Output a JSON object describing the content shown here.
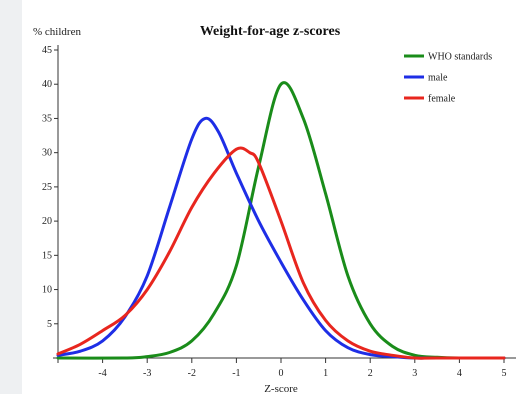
{
  "chart_data": {
    "type": "line",
    "title": "Weight-for-age z-scores",
    "ylabel": "% children",
    "xlabel": "Z-score",
    "xlim": [
      -5,
      5
    ],
    "ylim": [
      0,
      45
    ],
    "xticks": [
      -5,
      -4,
      -3,
      -2,
      -1,
      0,
      1,
      2,
      3,
      4,
      5
    ],
    "xtick_labels": [
      "",
      "-4",
      "-3",
      "-2",
      "-1",
      "0",
      "1",
      "2",
      "3",
      "4",
      "5"
    ],
    "yticks": [
      0,
      5,
      10,
      15,
      20,
      25,
      30,
      35,
      40,
      45
    ],
    "ytick_labels": [
      "",
      "5",
      "10",
      "15",
      "20",
      "25",
      "30",
      "35",
      "40",
      "45"
    ],
    "legend_position": "top-right",
    "grid": false,
    "series": [
      {
        "name": "WHO standards",
        "color": "#1a8c1a",
        "x": [
          -5,
          -3.5,
          -3,
          -2.5,
          -2,
          -1.5,
          -1,
          -0.5,
          0,
          0.5,
          1,
          1.5,
          2,
          2.5,
          3,
          3.5,
          4,
          5
        ],
        "y": [
          0,
          0,
          0.2,
          0.8,
          2.5,
          6.5,
          13.5,
          28,
          40,
          35,
          24,
          12,
          5,
          1.7,
          0.4,
          0.1,
          0,
          0
        ]
      },
      {
        "name": "male",
        "color": "#1e2ee6",
        "x": [
          -5,
          -4.5,
          -4,
          -3.5,
          -3,
          -2.5,
          -2,
          -1.7,
          -1.4,
          -1,
          -0.5,
          0,
          0.5,
          1,
          1.5,
          2,
          2.5,
          3,
          3.5,
          5
        ],
        "y": [
          0.4,
          1,
          2.5,
          6,
          12,
          22,
          32,
          35,
          33,
          27,
          20,
          14,
          8.5,
          4,
          1.5,
          0.5,
          0.2,
          0,
          0,
          0
        ]
      },
      {
        "name": "female",
        "color": "#e8261e",
        "x": [
          -5,
          -4.5,
          -4,
          -3.5,
          -3,
          -2.5,
          -2,
          -1.5,
          -1,
          -0.7,
          -0.5,
          0,
          0.5,
          1,
          1.5,
          2,
          2.5,
          3,
          3.5,
          5
        ],
        "y": [
          0.6,
          2,
          4,
          6.2,
          10,
          15.5,
          22,
          27,
          30.5,
          30,
          28.5,
          20,
          11,
          5.5,
          2.5,
          1,
          0.4,
          0,
          0,
          0
        ]
      }
    ]
  }
}
